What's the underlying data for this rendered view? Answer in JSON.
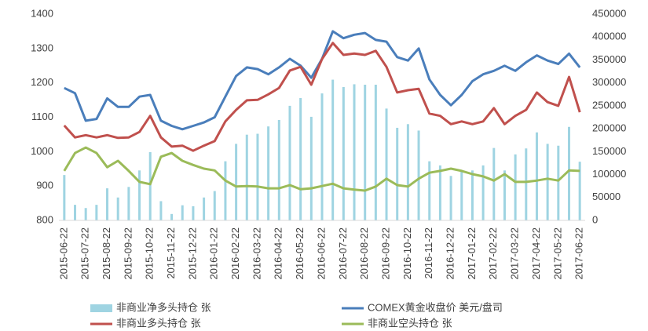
{
  "chart_data": {
    "type": "combo",
    "categories": [
      "2015-06-22",
      null,
      "2015-07-22",
      null,
      "2015-08-22",
      null,
      "2015-09-22",
      null,
      "2015-10-22",
      null,
      "2015-11-22",
      null,
      "2015-12-22",
      null,
      "2016-01-22",
      null,
      "2016-02-22",
      null,
      "2016-03-22",
      null,
      "2016-04-22",
      null,
      "2016-05-22",
      null,
      "2016-06-22",
      null,
      "2016-07-22",
      null,
      "2016-08-22",
      null,
      "2016-09-22",
      null,
      "2016-10-22",
      null,
      "2016-11-22",
      null,
      "2016-12-22",
      null,
      "2017-01-22",
      null,
      "2017-02-22",
      null,
      "2017-03-22",
      null,
      "2017-04-22",
      null,
      "2017-05-22",
      null,
      "2017-06-22"
    ],
    "series": [
      {
        "name": "非商业净多头持仓 张",
        "type": "bar",
        "axis": "y2",
        "color": "#9fd4e2",
        "values": [
          99000,
          34000,
          27000,
          34000,
          70000,
          50000,
          73000,
          109000,
          149000,
          42000,
          14000,
          33000,
          31000,
          50000,
          64000,
          129000,
          167000,
          187000,
          189000,
          205000,
          219000,
          250000,
          267000,
          226000,
          277000,
          307000,
          291000,
          297000,
          296000,
          296000,
          244000,
          202000,
          210000,
          196000,
          129000,
          120000,
          97000,
          108000,
          109000,
          120000,
          158000,
          109000,
          144000,
          157000,
          192000,
          167000,
          163000,
          204000,
          128000
        ]
      },
      {
        "name": "COMEX黄金收盘价 美元/盘司",
        "type": "line",
        "color": "#4a7ebb",
        "values": [
          1185,
          1170,
          1090,
          1095,
          1155,
          1130,
          1130,
          1160,
          1165,
          1090,
          1075,
          1065,
          1075,
          1085,
          1100,
          1160,
          1220,
          1245,
          1240,
          1225,
          1245,
          1270,
          1250,
          1215,
          1270,
          1350,
          1330,
          1340,
          1345,
          1325,
          1320,
          1275,
          1265,
          1300,
          1210,
          1165,
          1135,
          1165,
          1205,
          1225,
          1235,
          1250,
          1235,
          1260,
          1280,
          1265,
          1255,
          1285,
          1245
        ]
      },
      {
        "name": "非商业多头持仓 张",
        "type": "line",
        "axis": "y2",
        "color": "#c0504d",
        "values": [
          207000,
          181000,
          186000,
          181000,
          186000,
          180000,
          181000,
          193000,
          228000,
          181000,
          161000,
          163000,
          152000,
          163000,
          173000,
          216000,
          241000,
          262000,
          263000,
          275000,
          289000,
          327000,
          335000,
          296000,
          352000,
          387000,
          361000,
          364000,
          361000,
          370000,
          335000,
          279000,
          284000,
          287000,
          233000,
          228000,
          210000,
          216000,
          210000,
          216000,
          245000,
          210000,
          228000,
          241000,
          279000,
          258000,
          250000,
          313000,
          236000
        ]
      },
      {
        "name": "非商业空头持仓 张",
        "type": "line",
        "axis": "y2",
        "color": "#9bbb59",
        "values": [
          108000,
          147000,
          159000,
          147000,
          116000,
          130000,
          108000,
          84000,
          79000,
          139000,
          147000,
          130000,
          121000,
          113000,
          109000,
          87000,
          74000,
          75000,
          74000,
          70000,
          70000,
          77000,
          68000,
          70000,
          75000,
          80000,
          70000,
          67000,
          65000,
          74000,
          91000,
          77000,
          74000,
          91000,
          104000,
          108000,
          113000,
          108000,
          101000,
          96000,
          87000,
          101000,
          84000,
          84000,
          87000,
          91000,
          87000,
          109000,
          108000
        ]
      }
    ],
    "ylim": [
      800,
      1400
    ],
    "yticks": [
      800,
      900,
      1000,
      1100,
      1200,
      1300,
      1400
    ],
    "y2lim": [
      0,
      450000
    ],
    "y2ticks": [
      0,
      50000,
      100000,
      150000,
      200000,
      250000,
      300000,
      350000,
      400000,
      450000
    ]
  }
}
